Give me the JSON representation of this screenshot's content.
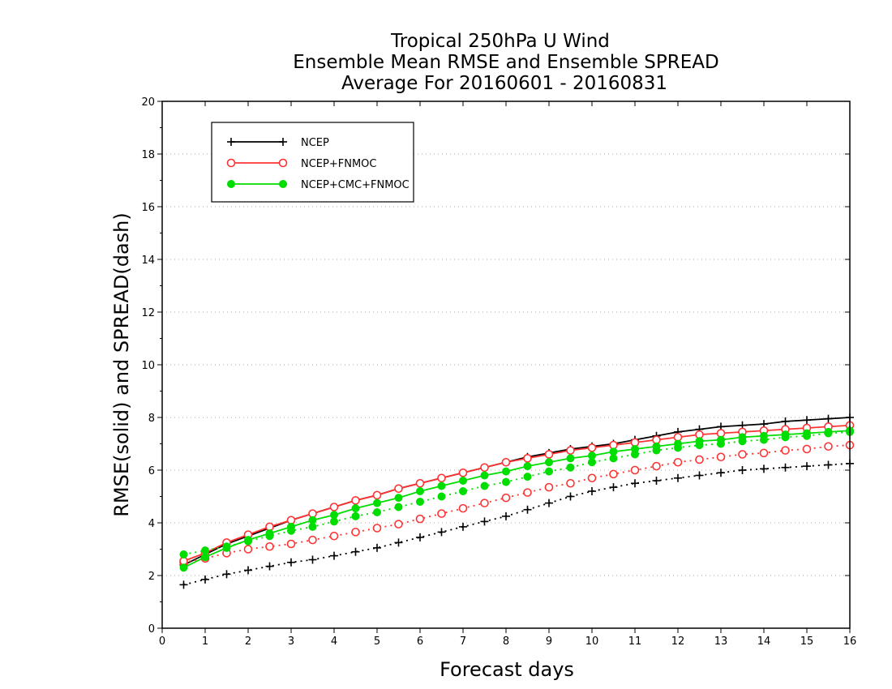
{
  "chart_data": {
    "type": "line",
    "title_lines": [
      "Tropical 250hPa U Wind",
      "Ensemble Mean RMSE and Ensemble SPREAD",
      "Average For 20160601 - 20160831"
    ],
    "xlabel": "Forecast days",
    "ylabel": "RMSE(solid) and SPREAD(dash)",
    "xlim": [
      0,
      16
    ],
    "ylim": [
      0,
      20
    ],
    "xticks": [
      "0",
      "1",
      "2",
      "3",
      "4",
      "5",
      "6",
      "7",
      "8",
      "9",
      "10",
      "11",
      "12",
      "13",
      "14",
      "15",
      "16"
    ],
    "yticks": [
      "0",
      "2",
      "4",
      "6",
      "8",
      "10",
      "12",
      "14",
      "16",
      "18",
      "20"
    ],
    "grid": true,
    "legend_position": "top-left",
    "x": [
      0.5,
      1,
      1.5,
      2,
      2.5,
      3,
      3.5,
      4,
      4.5,
      5,
      5.5,
      6,
      6.5,
      7,
      7.5,
      8,
      8.5,
      9,
      9.5,
      10,
      10.5,
      11,
      11.5,
      12,
      12.5,
      13,
      13.5,
      14,
      14.5,
      15,
      15.5,
      16
    ],
    "series": [
      {
        "name": "NCEP",
        "color": "#000000",
        "marker": "plus",
        "rmse": [
          2.4,
          2.8,
          3.2,
          3.5,
          3.8,
          4.1,
          4.35,
          4.6,
          4.85,
          5.05,
          5.3,
          5.5,
          5.7,
          5.9,
          6.1,
          6.3,
          6.5,
          6.65,
          6.8,
          6.9,
          7.0,
          7.15,
          7.3,
          7.45,
          7.55,
          7.65,
          7.7,
          7.75,
          7.85,
          7.9,
          7.95,
          8.0
        ],
        "spread": [
          1.65,
          1.85,
          2.05,
          2.2,
          2.35,
          2.5,
          2.6,
          2.75,
          2.9,
          3.05,
          3.25,
          3.45,
          3.65,
          3.85,
          4.05,
          4.25,
          4.5,
          4.75,
          5.0,
          5.2,
          5.35,
          5.5,
          5.6,
          5.7,
          5.8,
          5.9,
          6.0,
          6.05,
          6.1,
          6.15,
          6.2,
          6.25
        ]
      },
      {
        "name": "NCEP+FNMOC",
        "color": "#ff3333",
        "marker": "circle-open",
        "rmse": [
          2.55,
          2.85,
          3.25,
          3.55,
          3.85,
          4.1,
          4.35,
          4.6,
          4.85,
          5.05,
          5.3,
          5.5,
          5.7,
          5.9,
          6.1,
          6.3,
          6.45,
          6.6,
          6.75,
          6.85,
          6.95,
          7.05,
          7.15,
          7.25,
          7.35,
          7.4,
          7.45,
          7.5,
          7.55,
          7.6,
          7.65,
          7.7
        ],
        "spread": [
          2.5,
          2.65,
          2.85,
          3.0,
          3.1,
          3.2,
          3.35,
          3.5,
          3.65,
          3.8,
          3.95,
          4.15,
          4.35,
          4.55,
          4.75,
          4.95,
          5.15,
          5.35,
          5.5,
          5.7,
          5.85,
          6.0,
          6.15,
          6.3,
          6.4,
          6.5,
          6.6,
          6.65,
          6.75,
          6.8,
          6.9,
          6.95
        ]
      },
      {
        "name": "NCEP+CMC+FNMOC",
        "color": "#00dd00",
        "marker": "circle-filled",
        "rmse": [
          2.3,
          2.7,
          3.05,
          3.35,
          3.6,
          3.85,
          4.1,
          4.3,
          4.55,
          4.75,
          4.95,
          5.2,
          5.4,
          5.6,
          5.8,
          5.95,
          6.15,
          6.3,
          6.45,
          6.55,
          6.7,
          6.8,
          6.9,
          7.0,
          7.1,
          7.15,
          7.25,
          7.3,
          7.35,
          7.4,
          7.45,
          7.5
        ],
        "spread": [
          2.8,
          2.95,
          3.1,
          3.3,
          3.5,
          3.7,
          3.85,
          4.05,
          4.25,
          4.4,
          4.6,
          4.8,
          5.0,
          5.2,
          5.4,
          5.55,
          5.75,
          5.95,
          6.1,
          6.3,
          6.45,
          6.6,
          6.75,
          6.85,
          6.95,
          7.0,
          7.1,
          7.15,
          7.25,
          7.3,
          7.4,
          7.45
        ]
      }
    ]
  }
}
